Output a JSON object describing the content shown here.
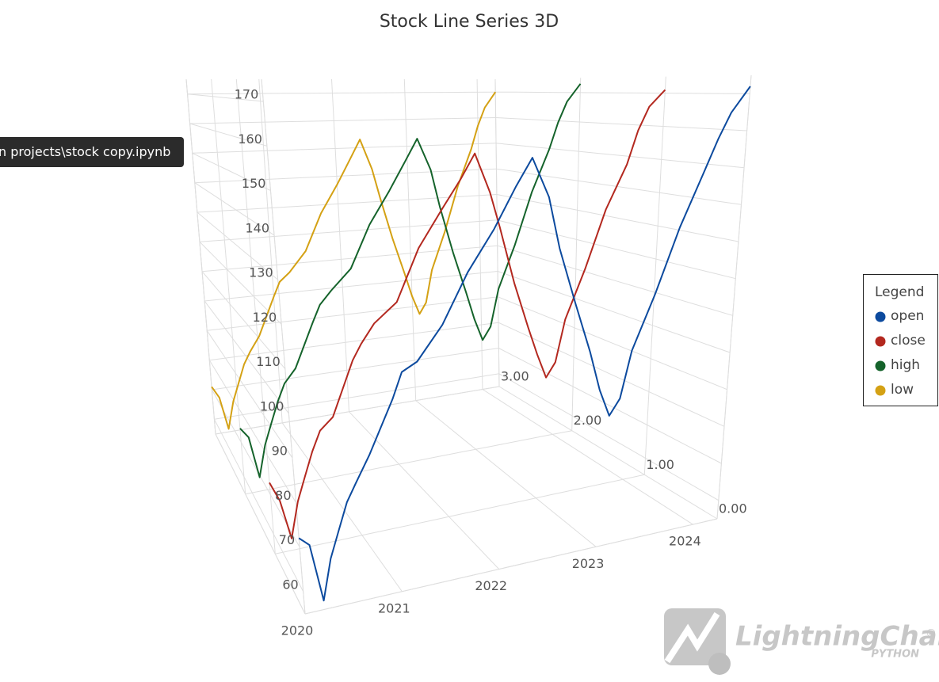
{
  "chart_data": {
    "type": "line3d",
    "title": "Stock Line Series 3D",
    "x": [
      2020.0,
      2020.1,
      2020.2,
      2020.3,
      2020.4,
      2020.5,
      2020.6,
      2020.75,
      2021.0,
      2021.1,
      2021.25,
      2021.5,
      2021.75,
      2022.0,
      2022.2,
      2022.35,
      2022.5,
      2022.6,
      2022.75,
      2022.9,
      2023.0,
      2023.1,
      2023.2,
      2023.3,
      2023.5,
      2023.7,
      2023.9,
      2024.0,
      2024.1,
      2024.25
    ],
    "series": [
      {
        "name": "open",
        "color": "#0c4a9e",
        "z": 0,
        "values": [
          72,
          70,
          57,
          66,
          72,
          78,
          82,
          88,
          100,
          106,
          108,
          116,
          128,
          138,
          148,
          155,
          145,
          132,
          118,
          105,
          95,
          88,
          92,
          104,
          118,
          135,
          150,
          158,
          165,
          172
        ]
      },
      {
        "name": "close",
        "color": "#b3281f",
        "z": 1,
        "values": [
          73,
          68,
          58,
          67,
          73,
          79,
          84,
          87,
          101,
          105,
          110,
          115,
          129,
          139,
          147,
          154,
          143,
          133,
          117,
          104,
          96,
          89,
          93,
          105,
          119,
          136,
          149,
          159,
          166,
          171
        ]
      },
      {
        "name": "high",
        "color": "#15632b",
        "z": 2,
        "values": [
          74,
          71,
          59,
          68,
          74,
          80,
          85,
          89,
          102,
          107,
          111,
          117,
          130,
          140,
          149,
          156,
          146,
          134,
          119,
          106,
          97,
          90,
          94,
          106,
          120,
          137,
          151,
          160,
          167,
          173
        ]
      },
      {
        "name": "low",
        "color": "#d4a114",
        "z": 3,
        "values": [
          71,
          67,
          56,
          65,
          71,
          77,
          81,
          86,
          99,
          104,
          107,
          114,
          127,
          137,
          146,
          153,
          142,
          131,
          116,
          103,
          94,
          87,
          91,
          103,
          117,
          134,
          148,
          157,
          164,
          170
        ]
      }
    ],
    "xlim": [
      2020,
      2024.25
    ],
    "xticks": [
      2020,
      2021,
      2022,
      2023,
      2024
    ],
    "ylim": [
      55,
      175
    ],
    "yticks": [
      60,
      70,
      80,
      90,
      100,
      110,
      120,
      130,
      140,
      150,
      160,
      170
    ],
    "zlim": [
      0,
      3
    ],
    "zticks": [
      {
        "value": 0,
        "label": "0.00"
      },
      {
        "value": 1,
        "label": "1.00"
      },
      {
        "value": 2,
        "label": "2.00"
      },
      {
        "value": 3,
        "label": "3.00"
      }
    ],
    "grid": true,
    "legend_title": "Legend",
    "legend_position": "right"
  },
  "tooltip": "n projects\\stock copy.ipynb",
  "watermark": {
    "brand": "LightningChart",
    "mark": "®",
    "sub": "PYTHON"
  }
}
